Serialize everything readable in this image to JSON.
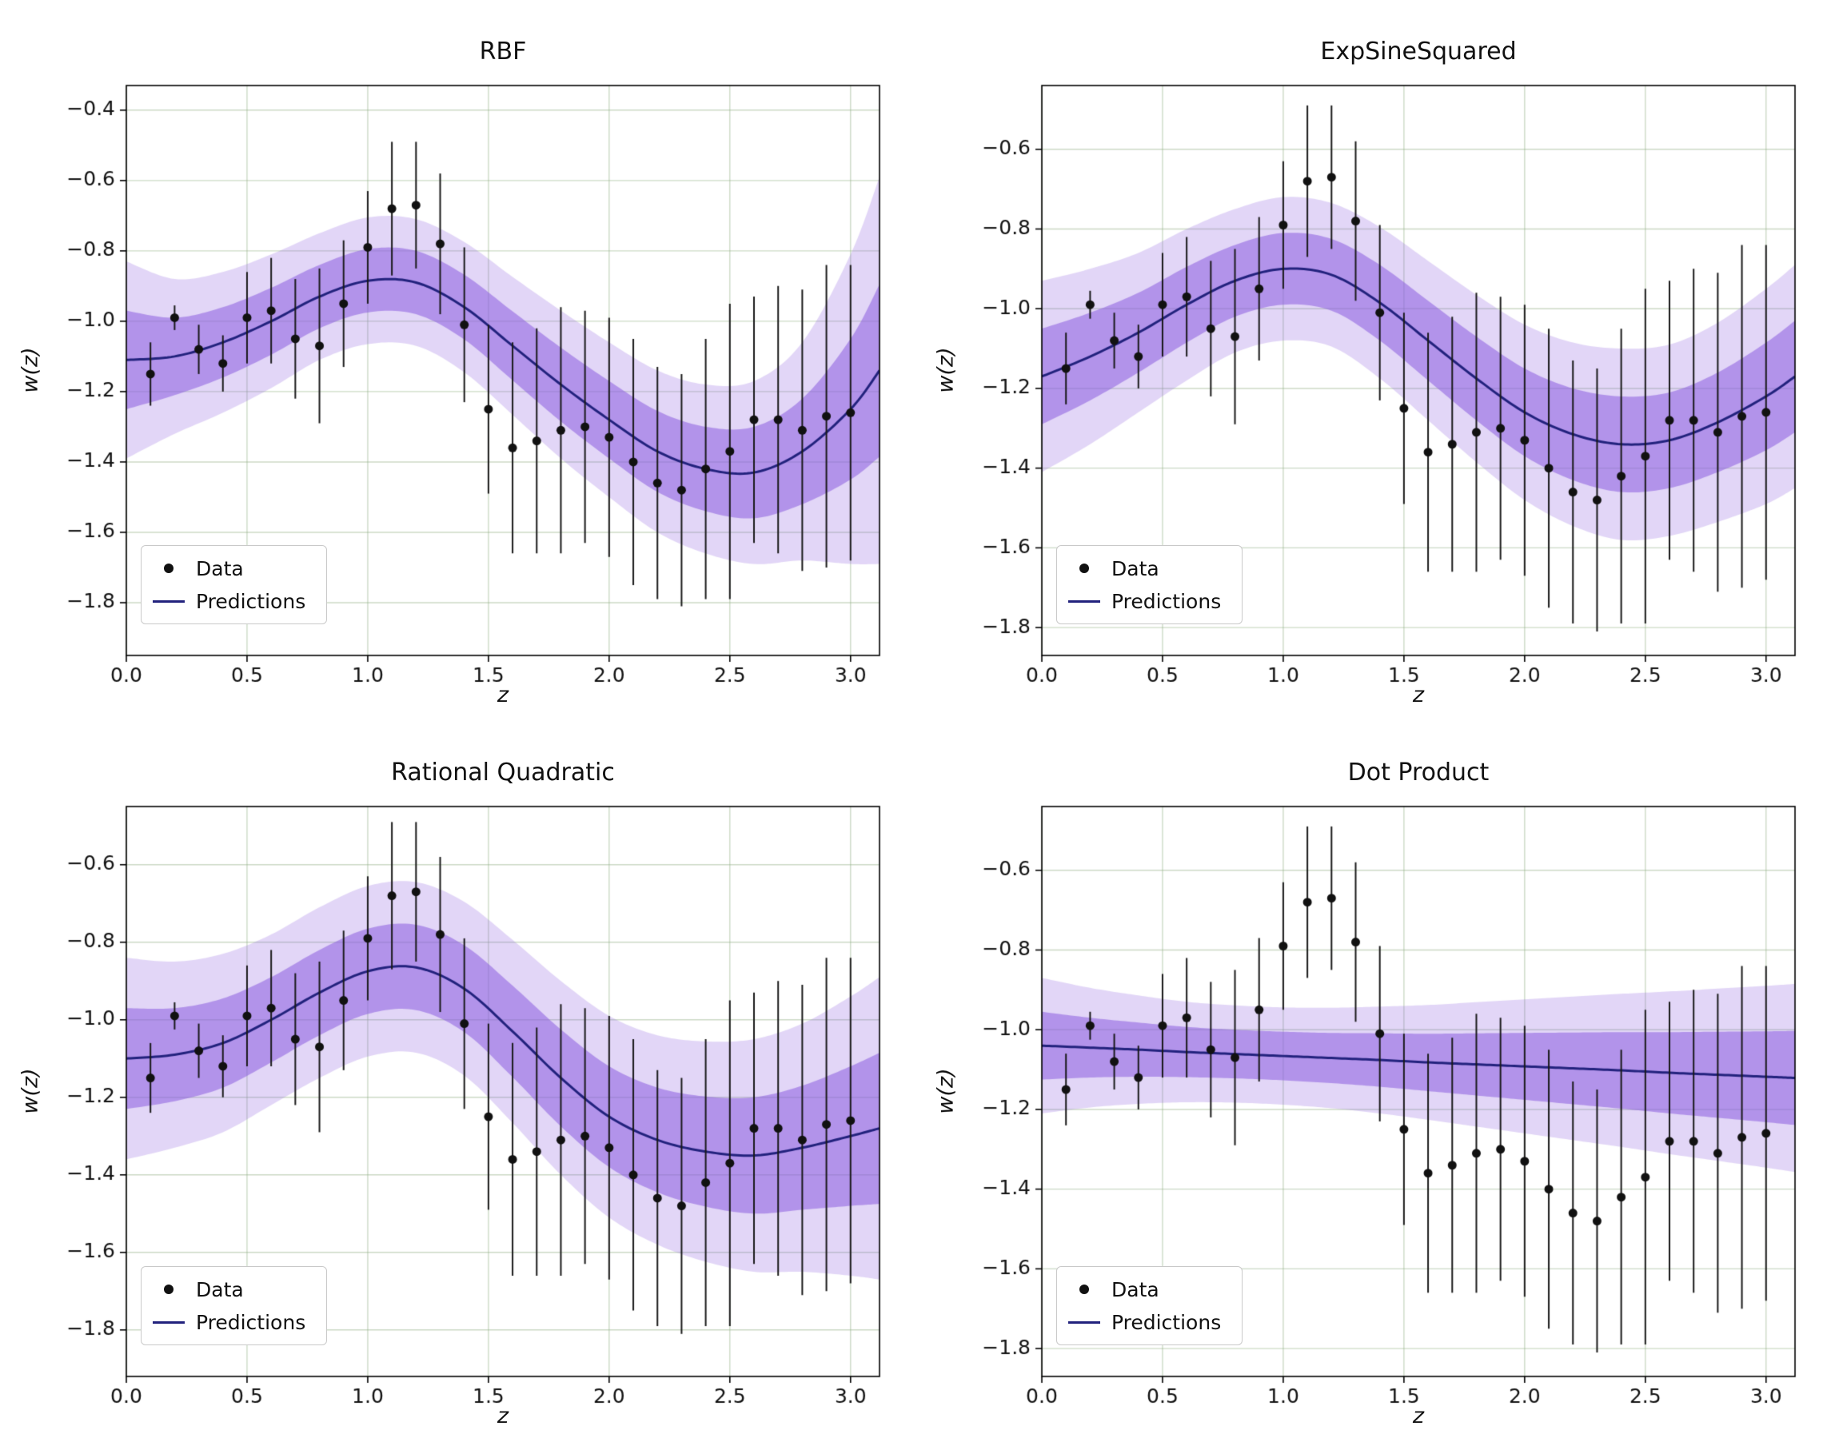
{
  "legend": {
    "data_label": "Data",
    "predictions_label": "Predictions"
  },
  "colors": {
    "point": "#111111",
    "error_bar": "#1a1a1a",
    "prediction_line": "#22227d",
    "band_fill": "#8a5ce0",
    "band_inner_alpha": 0.55,
    "band_outer_alpha": 0.25,
    "grid": "#8fae80",
    "grid_alpha": 0.45,
    "spine": "#000000",
    "tick_label": "#111111",
    "background": "#ffffff"
  },
  "chart_data": {
    "layout": "2x2-grid",
    "type": "line+scatter",
    "shared": {
      "xlabel": "z",
      "ylabel": "w(z)",
      "xlim": [
        0,
        3.12
      ],
      "xticks": [
        0.0,
        0.5,
        1.0,
        1.5,
        2.0,
        2.5,
        3.0
      ],
      "grid": true,
      "legend_position": "lower left",
      "observations": {
        "z": [
          0.1,
          0.2,
          0.3,
          0.4,
          0.5,
          0.6,
          0.7,
          0.8,
          0.9,
          1.0,
          1.1,
          1.2,
          1.3,
          1.4,
          1.5,
          1.6,
          1.7,
          1.8,
          1.9,
          2.0,
          2.1,
          2.2,
          2.3,
          2.4,
          2.5,
          2.6,
          2.7,
          2.8,
          2.9,
          3.0
        ],
        "w": [
          -1.15,
          -0.99,
          -1.08,
          -1.12,
          -0.99,
          -0.97,
          -1.05,
          -1.07,
          -0.95,
          -0.79,
          -0.68,
          -0.67,
          -0.78,
          -1.01,
          -1.25,
          -1.36,
          -1.34,
          -1.31,
          -1.3,
          -1.33,
          -1.4,
          -1.46,
          -1.48,
          -1.42,
          -1.37,
          -1.28,
          -1.28,
          -1.31,
          -1.27,
          -1.26
        ],
        "yerr": [
          0.09,
          0.035,
          0.07,
          0.08,
          0.13,
          0.15,
          0.17,
          0.22,
          0.18,
          0.16,
          0.19,
          0.18,
          0.2,
          0.22,
          0.24,
          0.3,
          0.32,
          0.35,
          0.33,
          0.34,
          0.35,
          0.33,
          0.33,
          0.37,
          0.42,
          0.35,
          0.38,
          0.4,
          0.43,
          0.42
        ]
      },
      "curve_z": [
        0,
        0.2,
        0.4,
        0.6,
        0.8,
        1.0,
        1.2,
        1.4,
        1.6,
        1.8,
        2.0,
        2.2,
        2.4,
        2.6,
        2.8,
        3.0,
        3.12
      ]
    },
    "panels": [
      {
        "title": "RBF",
        "ylim": [
          -1.95,
          -0.33
        ],
        "yticks": [
          -0.4,
          -0.6,
          -0.8,
          -1.0,
          -1.2,
          -1.4,
          -1.6,
          -1.8
        ],
        "mean": [
          -1.11,
          -1.1,
          -1.06,
          -1.0,
          -0.93,
          -0.885,
          -0.89,
          -0.96,
          -1.07,
          -1.18,
          -1.28,
          -1.37,
          -1.42,
          -1.43,
          -1.37,
          -1.25,
          -1.14
        ],
        "sigma1": [
          0.14,
          0.11,
          0.1,
          0.095,
          0.09,
          0.09,
          0.09,
          0.092,
          0.098,
          0.105,
          0.11,
          0.115,
          0.12,
          0.13,
          0.15,
          0.2,
          0.245
        ],
        "sigma2": [
          0.28,
          0.22,
          0.2,
          0.19,
          0.18,
          0.18,
          0.18,
          0.185,
          0.196,
          0.21,
          0.22,
          0.23,
          0.24,
          0.26,
          0.31,
          0.44,
          0.55
        ]
      },
      {
        "title": "ExpSineSquared",
        "ylim": [
          -1.87,
          -0.44
        ],
        "yticks": [
          -0.6,
          -0.8,
          -1.0,
          -1.2,
          -1.4,
          -1.6,
          -1.8
        ],
        "mean": [
          -1.17,
          -1.12,
          -1.06,
          -0.99,
          -0.93,
          -0.9,
          -0.915,
          -0.985,
          -1.08,
          -1.175,
          -1.26,
          -1.315,
          -1.34,
          -1.33,
          -1.285,
          -1.22,
          -1.17
        ],
        "sigma1": [
          0.12,
          0.11,
          0.1,
          0.095,
          0.09,
          0.09,
          0.09,
          0.095,
          0.1,
          0.105,
          0.11,
          0.115,
          0.12,
          0.12,
          0.125,
          0.135,
          0.14
        ],
        "sigma2": [
          0.24,
          0.22,
          0.2,
          0.19,
          0.18,
          0.18,
          0.18,
          0.19,
          0.2,
          0.21,
          0.22,
          0.23,
          0.24,
          0.24,
          0.25,
          0.27,
          0.28
        ]
      },
      {
        "title": "Rational Quadratic",
        "ylim": [
          -1.92,
          -0.45
        ],
        "yticks": [
          -0.6,
          -0.8,
          -1.0,
          -1.2,
          -1.4,
          -1.6,
          -1.8
        ],
        "mean": [
          -1.1,
          -1.09,
          -1.06,
          -1.0,
          -0.93,
          -0.875,
          -0.865,
          -0.92,
          -1.03,
          -1.15,
          -1.25,
          -1.31,
          -1.34,
          -1.35,
          -1.33,
          -1.3,
          -1.28
        ],
        "sigma1": [
          0.13,
          0.12,
          0.115,
          0.11,
          0.11,
          0.11,
          0.11,
          0.112,
          0.118,
          0.125,
          0.13,
          0.135,
          0.142,
          0.15,
          0.16,
          0.18,
          0.195
        ],
        "sigma2": [
          0.26,
          0.24,
          0.23,
          0.22,
          0.22,
          0.22,
          0.22,
          0.224,
          0.236,
          0.25,
          0.26,
          0.27,
          0.284,
          0.3,
          0.32,
          0.36,
          0.39
        ]
      },
      {
        "title": "Dot Product",
        "ylim": [
          -1.87,
          -0.44
        ],
        "yticks": [
          -0.6,
          -0.8,
          -1.0,
          -1.2,
          -1.4,
          -1.6,
          -1.8
        ],
        "mean": [
          -1.04,
          -1.045,
          -1.05,
          -1.056,
          -1.061,
          -1.066,
          -1.071,
          -1.076,
          -1.082,
          -1.087,
          -1.092,
          -1.097,
          -1.102,
          -1.108,
          -1.113,
          -1.118,
          -1.121
        ],
        "sigma1": [
          0.085,
          0.075,
          0.068,
          0.063,
          0.061,
          0.061,
          0.063,
          0.067,
          0.072,
          0.078,
          0.084,
          0.09,
          0.096,
          0.102,
          0.108,
          0.114,
          0.118
        ],
        "sigma2": [
          0.17,
          0.15,
          0.136,
          0.126,
          0.122,
          0.122,
          0.126,
          0.134,
          0.144,
          0.156,
          0.168,
          0.18,
          0.192,
          0.204,
          0.216,
          0.228,
          0.236
        ]
      }
    ]
  }
}
